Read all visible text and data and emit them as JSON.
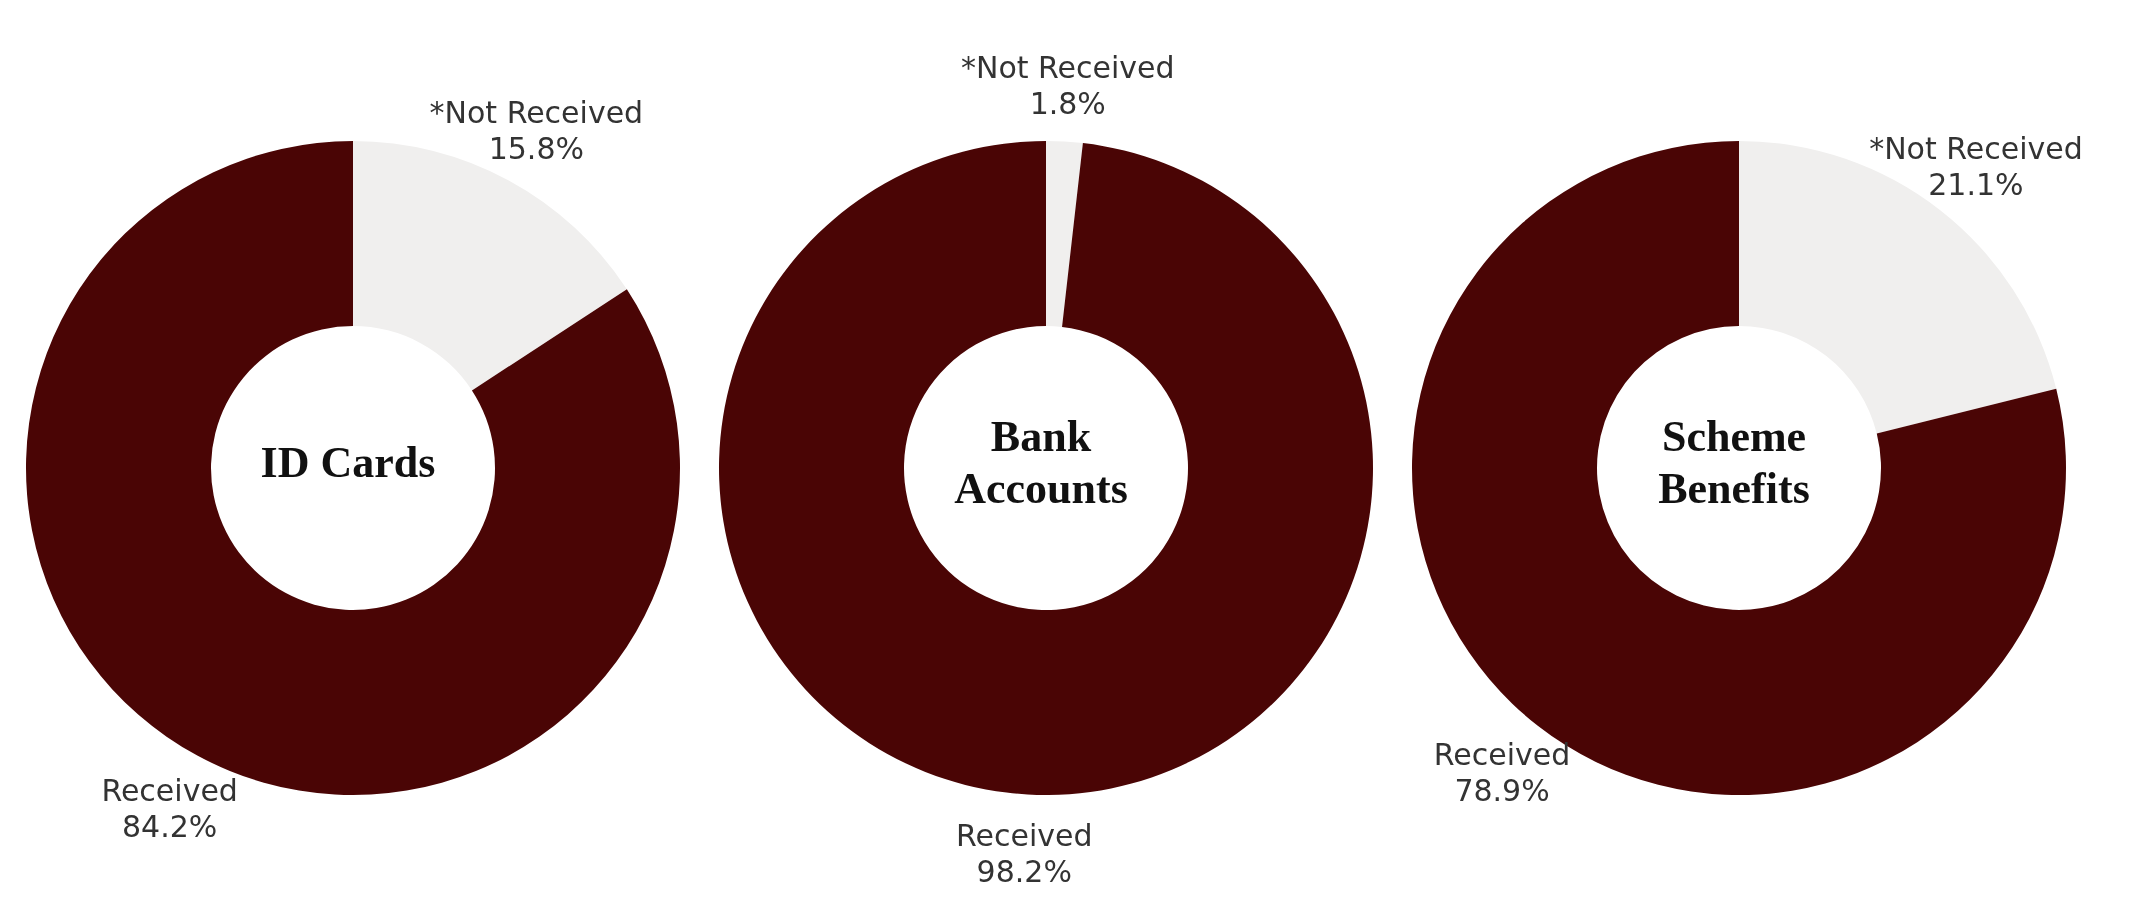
{
  "chart_data": [
    {
      "type": "donut",
      "title": "ID Cards",
      "categories": [
        "*Not Received",
        "Received"
      ],
      "values": [
        15.8,
        84.2
      ],
      "colors": [
        "#f0efee",
        "#4a0505"
      ],
      "value_labels": [
        "15.8%",
        "84.2%"
      ]
    },
    {
      "type": "donut",
      "title": "Bank Accounts",
      "categories": [
        "*Not Received",
        "Received"
      ],
      "values": [
        1.8,
        98.2
      ],
      "colors": [
        "#f0efee",
        "#4a0505"
      ],
      "value_labels": [
        "1.8%",
        "98.2%"
      ]
    },
    {
      "type": "donut",
      "title": "Scheme Benefits",
      "categories": [
        "*Not Received",
        "Received"
      ],
      "values": [
        21.1,
        78.9
      ],
      "colors": [
        "#f0efee",
        "#4a0505"
      ],
      "value_labels": [
        "21.1%",
        "78.9%"
      ]
    }
  ]
}
